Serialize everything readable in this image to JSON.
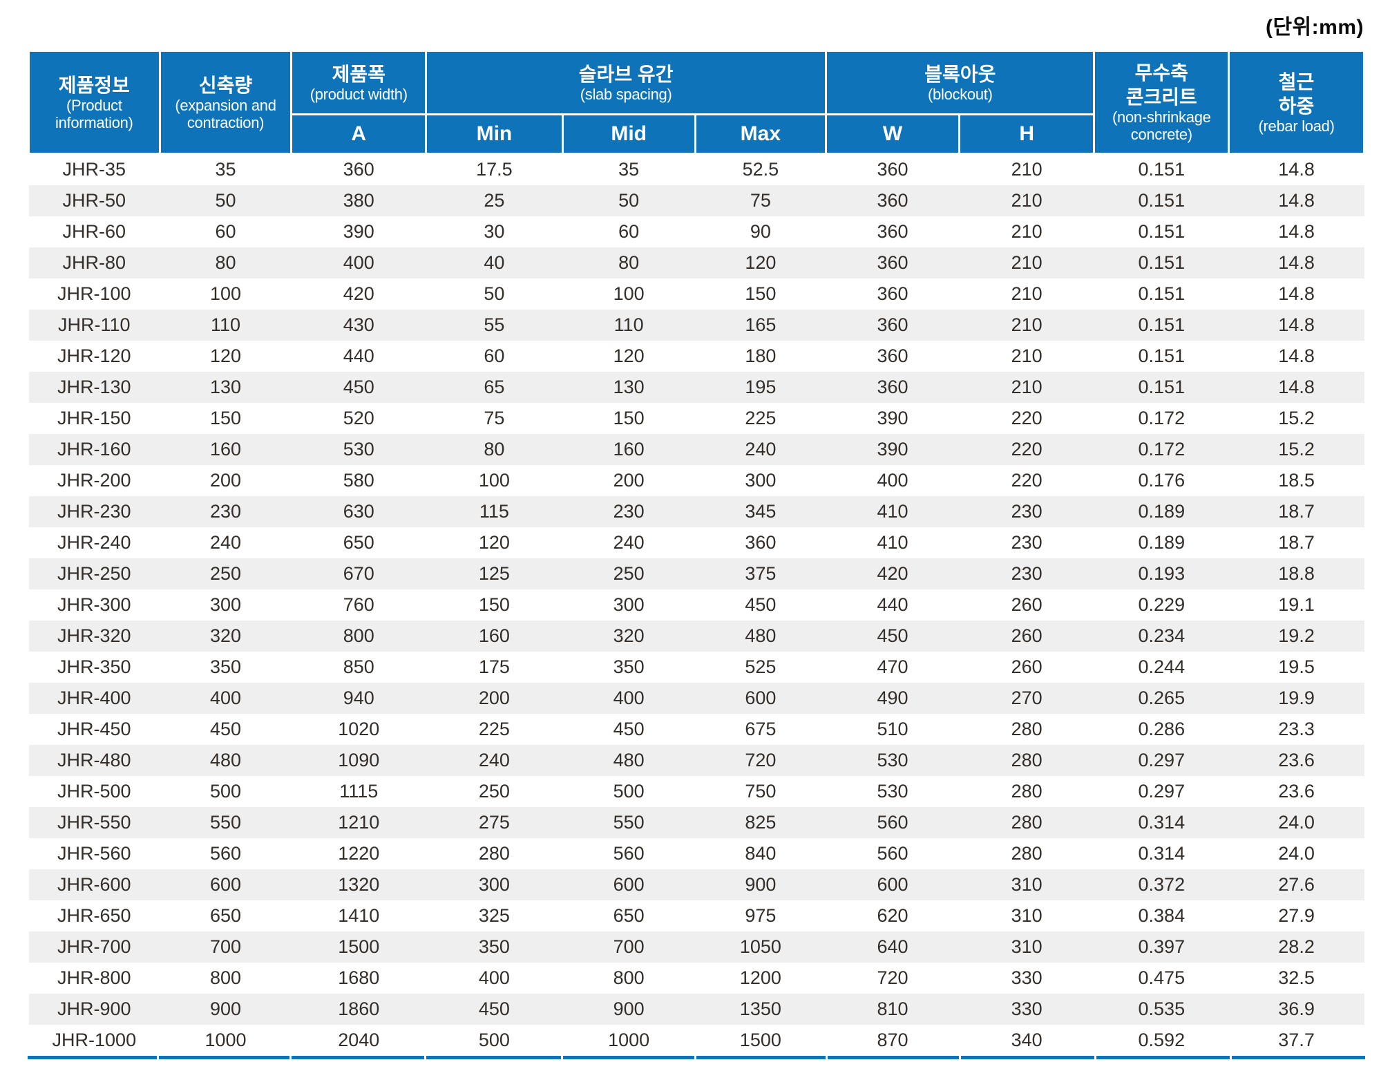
{
  "unit_label": "(단위:mm)",
  "colors": {
    "header_bg": "#0e73b9",
    "row_alt": "#efefef",
    "bottom_border": "#0e73b9",
    "cell_text": "#332e29"
  },
  "table": {
    "headers": {
      "product_info": {
        "ko": "제품정보",
        "en": "(Product information)"
      },
      "expansion": {
        "ko": "신축량",
        "en": "(expansion and contraction)"
      },
      "product_width": {
        "ko": "제품폭",
        "en": "(product width)"
      },
      "slab_spacing": {
        "ko": "슬라브 유간",
        "en": "(slab spacing)"
      },
      "blockout": {
        "ko": "블록아웃",
        "en": "(blockout)"
      },
      "concrete": {
        "ko": "무수축\n콘크리트",
        "en": "(non-shrinkage concrete)"
      },
      "rebar_load": {
        "ko": "철근\n하중",
        "en": "(rebar load)"
      }
    },
    "subheaders": [
      "A",
      "Min",
      "Mid",
      "Max",
      "W",
      "H"
    ],
    "rows": [
      [
        "JHR-35",
        "35",
        "360",
        "17.5",
        "35",
        "52.5",
        "360",
        "210",
        "0.151",
        "14.8"
      ],
      [
        "JHR-50",
        "50",
        "380",
        "25",
        "50",
        "75",
        "360",
        "210",
        "0.151",
        "14.8"
      ],
      [
        "JHR-60",
        "60",
        "390",
        "30",
        "60",
        "90",
        "360",
        "210",
        "0.151",
        "14.8"
      ],
      [
        "JHR-80",
        "80",
        "400",
        "40",
        "80",
        "120",
        "360",
        "210",
        "0.151",
        "14.8"
      ],
      [
        "JHR-100",
        "100",
        "420",
        "50",
        "100",
        "150",
        "360",
        "210",
        "0.151",
        "14.8"
      ],
      [
        "JHR-110",
        "110",
        "430",
        "55",
        "110",
        "165",
        "360",
        "210",
        "0.151",
        "14.8"
      ],
      [
        "JHR-120",
        "120",
        "440",
        "60",
        "120",
        "180",
        "360",
        "210",
        "0.151",
        "14.8"
      ],
      [
        "JHR-130",
        "130",
        "450",
        "65",
        "130",
        "195",
        "360",
        "210",
        "0.151",
        "14.8"
      ],
      [
        "JHR-150",
        "150",
        "520",
        "75",
        "150",
        "225",
        "390",
        "220",
        "0.172",
        "15.2"
      ],
      [
        "JHR-160",
        "160",
        "530",
        "80",
        "160",
        "240",
        "390",
        "220",
        "0.172",
        "15.2"
      ],
      [
        "JHR-200",
        "200",
        "580",
        "100",
        "200",
        "300",
        "400",
        "220",
        "0.176",
        "18.5"
      ],
      [
        "JHR-230",
        "230",
        "630",
        "115",
        "230",
        "345",
        "410",
        "230",
        "0.189",
        "18.7"
      ],
      [
        "JHR-240",
        "240",
        "650",
        "120",
        "240",
        "360",
        "410",
        "230",
        "0.189",
        "18.7"
      ],
      [
        "JHR-250",
        "250",
        "670",
        "125",
        "250",
        "375",
        "420",
        "230",
        "0.193",
        "18.8"
      ],
      [
        "JHR-300",
        "300",
        "760",
        "150",
        "300",
        "450",
        "440",
        "260",
        "0.229",
        "19.1"
      ],
      [
        "JHR-320",
        "320",
        "800",
        "160",
        "320",
        "480",
        "450",
        "260",
        "0.234",
        "19.2"
      ],
      [
        "JHR-350",
        "350",
        "850",
        "175",
        "350",
        "525",
        "470",
        "260",
        "0.244",
        "19.5"
      ],
      [
        "JHR-400",
        "400",
        "940",
        "200",
        "400",
        "600",
        "490",
        "270",
        "0.265",
        "19.9"
      ],
      [
        "JHR-450",
        "450",
        "1020",
        "225",
        "450",
        "675",
        "510",
        "280",
        "0.286",
        "23.3"
      ],
      [
        "JHR-480",
        "480",
        "1090",
        "240",
        "480",
        "720",
        "530",
        "280",
        "0.297",
        "23.6"
      ],
      [
        "JHR-500",
        "500",
        "1115",
        "250",
        "500",
        "750",
        "530",
        "280",
        "0.297",
        "23.6"
      ],
      [
        "JHR-550",
        "550",
        "1210",
        "275",
        "550",
        "825",
        "560",
        "280",
        "0.314",
        "24.0"
      ],
      [
        "JHR-560",
        "560",
        "1220",
        "280",
        "560",
        "840",
        "560",
        "280",
        "0.314",
        "24.0"
      ],
      [
        "JHR-600",
        "600",
        "1320",
        "300",
        "600",
        "900",
        "600",
        "310",
        "0.372",
        "27.6"
      ],
      [
        "JHR-650",
        "650",
        "1410",
        "325",
        "650",
        "975",
        "620",
        "310",
        "0.384",
        "27.9"
      ],
      [
        "JHR-700",
        "700",
        "1500",
        "350",
        "700",
        "1050",
        "640",
        "310",
        "0.397",
        "28.2"
      ],
      [
        "JHR-800",
        "800",
        "1680",
        "400",
        "800",
        "1200",
        "720",
        "330",
        "0.475",
        "32.5"
      ],
      [
        "JHR-900",
        "900",
        "1860",
        "450",
        "900",
        "1350",
        "810",
        "330",
        "0.535",
        "36.9"
      ],
      [
        "JHR-1000",
        "1000",
        "2040",
        "500",
        "1000",
        "1500",
        "870",
        "340",
        "0.592",
        "37.7"
      ]
    ]
  }
}
